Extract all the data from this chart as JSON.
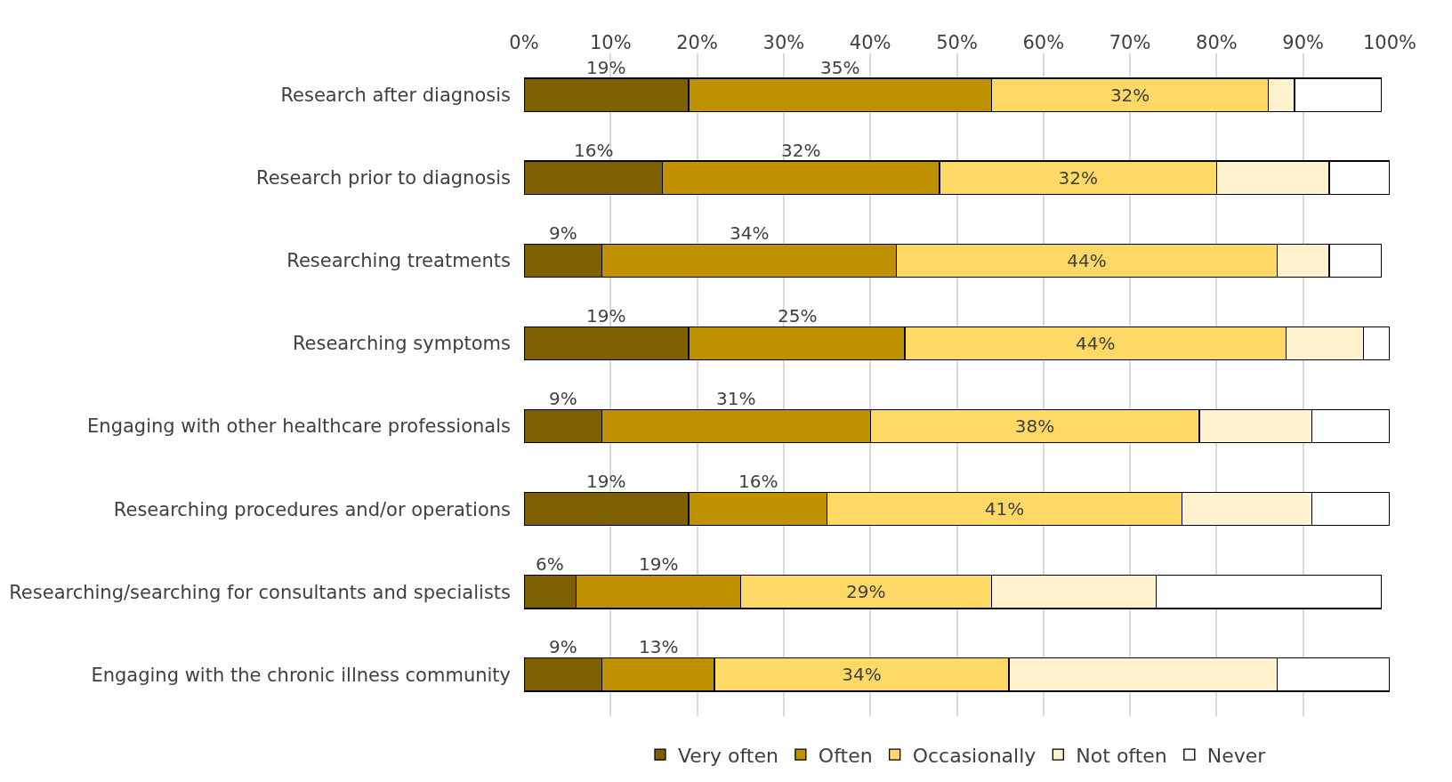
{
  "chart_data": {
    "type": "bar",
    "orientation": "horizontal",
    "stacked": true,
    "categories": [
      "Research after diagnosis",
      "Research prior to diagnosis",
      "Researching treatments",
      "Researching symptoms",
      "Engaging with other healthcare professionals",
      "Researching procedures and/or operations",
      "Researching/searching for consultants and specialists",
      "Engaging with the chronic illness community"
    ],
    "series": [
      {
        "name": "Very often",
        "color": "#7f6000",
        "values": [
          19,
          16,
          9,
          19,
          9,
          19,
          6,
          9
        ],
        "value_labels": [
          "19%",
          "16%",
          "9%",
          "19%",
          "9%",
          "19%",
          "6%",
          "9%"
        ]
      },
      {
        "name": "Often",
        "color": "#bf9000",
        "values": [
          35,
          32,
          34,
          25,
          31,
          16,
          19,
          13
        ],
        "value_labels": [
          "35%",
          "32%",
          "34%",
          "25%",
          "31%",
          "16%",
          "19%",
          "13%"
        ]
      },
      {
        "name": "Occasionally",
        "color": "#ffd966",
        "values": [
          32,
          32,
          44,
          44,
          38,
          41,
          29,
          34
        ],
        "value_labels": [
          "32%",
          "32%",
          "44%",
          "44%",
          "38%",
          "41%",
          "29%",
          "34%"
        ]
      },
      {
        "name": "Not often",
        "color": "#fff2cc",
        "values": [
          3,
          13,
          6,
          9,
          13,
          15,
          19,
          31
        ]
      },
      {
        "name": "Never",
        "color": "#ffffff",
        "values": [
          10,
          7,
          6,
          3,
          9,
          9,
          26,
          13
        ]
      }
    ],
    "xlim": [
      0,
      100
    ],
    "xticks": [
      {
        "value": 0,
        "label": "0%"
      },
      {
        "value": 10,
        "label": "10%"
      },
      {
        "value": 20,
        "label": "20%"
      },
      {
        "value": 30,
        "label": "30%"
      },
      {
        "value": 40,
        "label": "40%"
      },
      {
        "value": 50,
        "label": "50%"
      },
      {
        "value": 60,
        "label": "60%"
      },
      {
        "value": 70,
        "label": "70%"
      },
      {
        "value": 80,
        "label": "80%"
      },
      {
        "value": 90,
        "label": "90%"
      },
      {
        "value": 100,
        "label": "100%"
      }
    ],
    "grid": "x",
    "legend": "bottom"
  }
}
